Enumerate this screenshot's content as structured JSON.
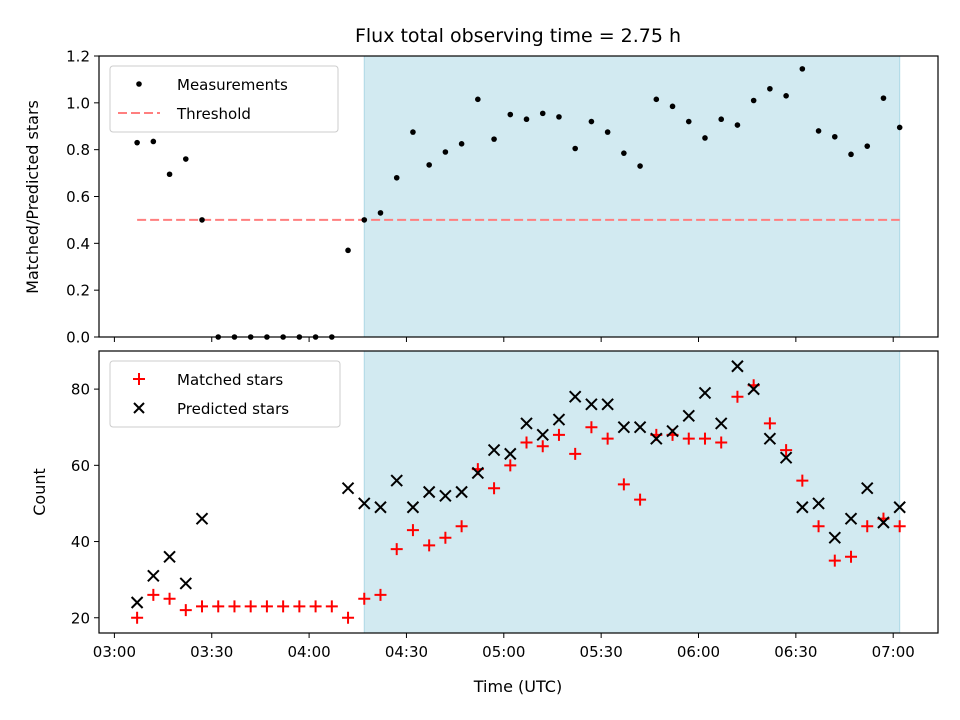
{
  "chart_data": {
    "title": "Flux total observing time = 2.75 h",
    "xlabel": "Time (UTC)",
    "x_ticks": [
      "03:00",
      "03:30",
      "04:00",
      "04:30",
      "05:00",
      "05:30",
      "06:00",
      "06:30",
      "07:00"
    ],
    "shaded_region": {
      "start": "04:17",
      "end": "07:02",
      "color": "#d2eaf1"
    },
    "colors": {
      "measurements": "#000000",
      "threshold": "#ff7f7f",
      "matched": "#ff0000",
      "predicted": "#000000"
    },
    "top": {
      "type": "scatter",
      "ylabel": "Matched/Predicted stars",
      "ylim": [
        0,
        1.2
      ],
      "y_ticks": [
        "0.0",
        "0.2",
        "0.4",
        "0.6",
        "0.8",
        "1.0",
        "1.2"
      ],
      "legend_position": "upper-left",
      "series": [
        {
          "name": "Measurements",
          "marker": "dot",
          "x": [
            "03:07",
            "03:12",
            "03:17",
            "03:22",
            "03:27",
            "03:32",
            "03:37",
            "03:42",
            "03:47",
            "03:52",
            "03:57",
            "04:02",
            "04:07",
            "04:12",
            "04:17",
            "04:22",
            "04:27",
            "04:32",
            "04:37",
            "04:42",
            "04:47",
            "04:52",
            "04:57",
            "05:02",
            "05:07",
            "05:12",
            "05:17",
            "05:22",
            "05:27",
            "05:32",
            "05:37",
            "05:42",
            "05:47",
            "05:52",
            "05:57",
            "06:02",
            "06:07",
            "06:12",
            "06:17",
            "06:22",
            "06:27",
            "06:32",
            "06:37",
            "06:42",
            "06:47",
            "06:52",
            "06:57",
            "07:02"
          ],
          "y": [
            0.83,
            0.835,
            0.695,
            0.76,
            0.5,
            0,
            0,
            0,
            0,
            0,
            0,
            0,
            0,
            0.37,
            0.5,
            0.53,
            0.68,
            0.875,
            0.735,
            0.79,
            0.825,
            1.015,
            0.845,
            0.95,
            0.93,
            0.955,
            0.94,
            0.805,
            0.92,
            0.875,
            0.785,
            0.73,
            1.015,
            0.985,
            0.92,
            0.85,
            0.93,
            0.905,
            1.01,
            1.06,
            1.03,
            1.145,
            0.88,
            0.855,
            0.78,
            0.815,
            1.02,
            0.895
          ]
        },
        {
          "name": "Threshold",
          "style": "dashed",
          "x": [
            "03:07",
            "07:02"
          ],
          "y": [
            0.5,
            0.5
          ]
        }
      ]
    },
    "bottom": {
      "type": "scatter",
      "ylabel": "Count",
      "ylim": [
        16,
        90
      ],
      "y_ticks": [
        "20",
        "40",
        "60",
        "80"
      ],
      "legend_position": "upper-left",
      "x": [
        "03:07",
        "03:12",
        "03:17",
        "03:22",
        "03:27",
        "03:32",
        "03:37",
        "03:42",
        "03:47",
        "03:52",
        "03:57",
        "04:02",
        "04:07",
        "04:12",
        "04:17",
        "04:22",
        "04:27",
        "04:32",
        "04:37",
        "04:42",
        "04:47",
        "04:52",
        "04:57",
        "05:02",
        "05:07",
        "05:12",
        "05:17",
        "05:22",
        "05:27",
        "05:32",
        "05:37",
        "05:42",
        "05:47",
        "05:52",
        "05:57",
        "06:02",
        "06:07",
        "06:12",
        "06:17",
        "06:22",
        "06:27",
        "06:32",
        "06:37",
        "06:42",
        "06:47",
        "06:52",
        "06:57",
        "07:02"
      ],
      "series": [
        {
          "name": "Matched stars",
          "marker": "plus",
          "values": [
            20,
            26,
            25,
            22,
            23,
            23,
            23,
            23,
            23,
            23,
            23,
            23,
            23,
            20,
            25,
            26,
            38,
            43,
            39,
            41,
            44,
            59,
            54,
            60,
            66,
            65,
            68,
            63,
            70,
            67,
            55,
            51,
            68,
            68,
            67,
            67,
            66,
            78,
            81,
            71,
            64,
            56,
            44,
            35,
            36,
            44,
            46,
            44
          ]
        },
        {
          "name": "Predicted stars",
          "marker": "x",
          "values": [
            24,
            31,
            36,
            29,
            46,
            null,
            null,
            null,
            null,
            null,
            null,
            null,
            null,
            54,
            50,
            49,
            56,
            49,
            53,
            52,
            53,
            58,
            64,
            63,
            71,
            68,
            72,
            78,
            76,
            76,
            70,
            70,
            67,
            69,
            73,
            79,
            71,
            86,
            80,
            67,
            62,
            49,
            50,
            41,
            46,
            54,
            45,
            49
          ]
        }
      ]
    }
  }
}
